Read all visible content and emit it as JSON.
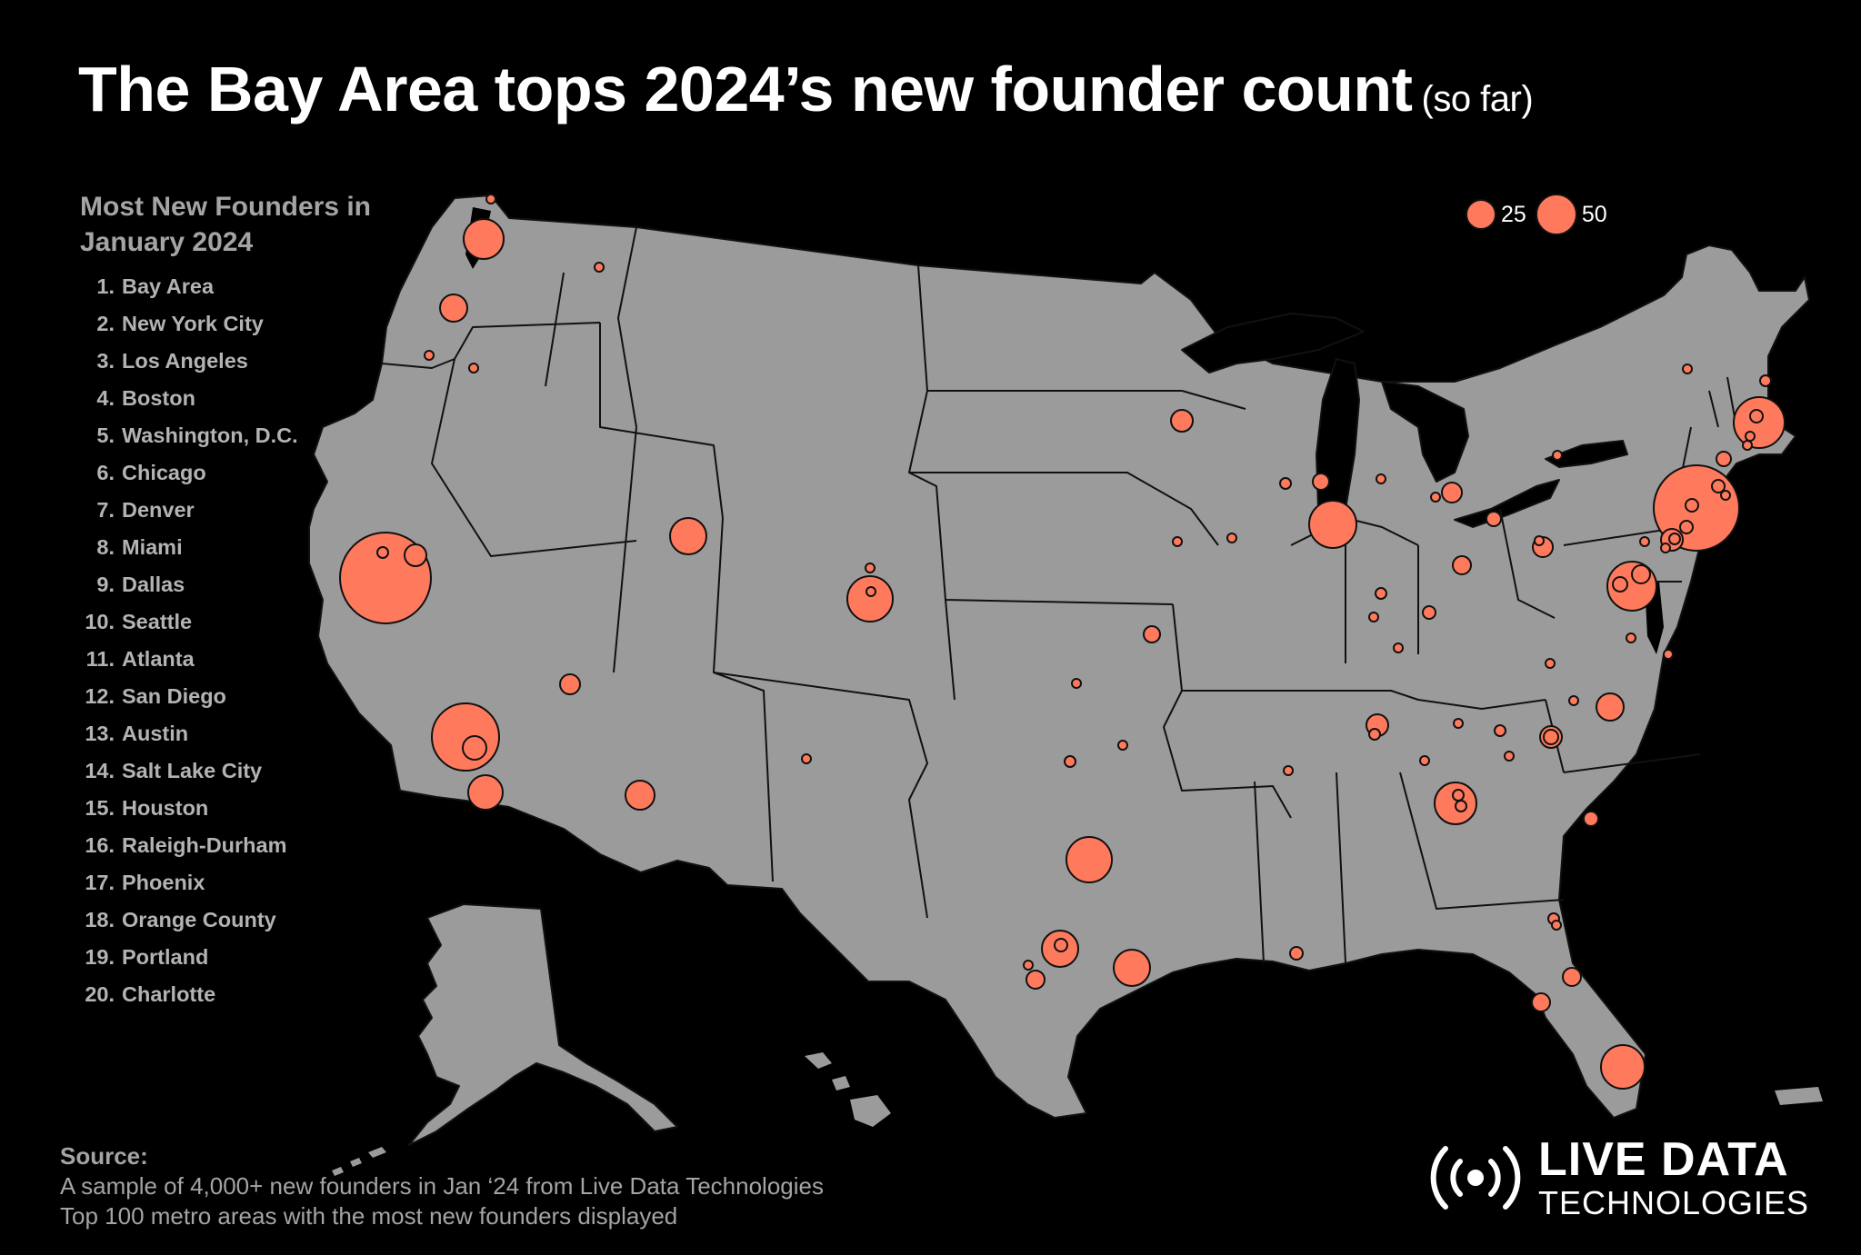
{
  "title": "The Bay Area tops 2024’s new founder count",
  "title_sub": "(so far)",
  "ranking": {
    "heading": "Most New Founders in January 2024",
    "items": [
      {
        "num": "1.",
        "label": "Bay Area"
      },
      {
        "num": "2.",
        "label": "New York City"
      },
      {
        "num": "3.",
        "label": "Los Angeles"
      },
      {
        "num": "4.",
        "label": "Boston"
      },
      {
        "num": "5.",
        "label": "Washington, D.C."
      },
      {
        "num": "6.",
        "label": "Chicago"
      },
      {
        "num": "7.",
        "label": "Denver"
      },
      {
        "num": "8.",
        "label": "Miami"
      },
      {
        "num": "9.",
        "label": "Dallas"
      },
      {
        "num": "10.",
        "label": "Seattle"
      },
      {
        "num": "11.",
        "label": "Atlanta"
      },
      {
        "num": "12.",
        "label": "San Diego"
      },
      {
        "num": "13.",
        "label": "Austin"
      },
      {
        "num": "14.",
        "label": "Salt Lake City"
      },
      {
        "num": "15.",
        "label": "Houston"
      },
      {
        "num": "16.",
        "label": "Raleigh-Durham"
      },
      {
        "num": "17.",
        "label": "Phoenix"
      },
      {
        "num": "18.",
        "label": "Orange County"
      },
      {
        "num": "19.",
        "label": "Portland"
      },
      {
        "num": "20.",
        "label": "Charlotte"
      }
    ]
  },
  "legend": {
    "small": "25",
    "large": "50"
  },
  "source": {
    "heading": "Source:",
    "line1": "A sample of 4,000+ new founders in Jan ‘24 from Live Data Technologies",
    "line2": "Top 100 metro areas with the most new founders displayed"
  },
  "logo": {
    "line1": "LIVE DATA",
    "line2": "TECHNOLOGIES",
    "icon": "broadcast-signal-icon"
  },
  "colors": {
    "background": "#000000",
    "land": "#9b9b9b",
    "bubble": "#ff7a5c",
    "border": "#111111",
    "ranking_text": "#b3b3b3"
  }
}
